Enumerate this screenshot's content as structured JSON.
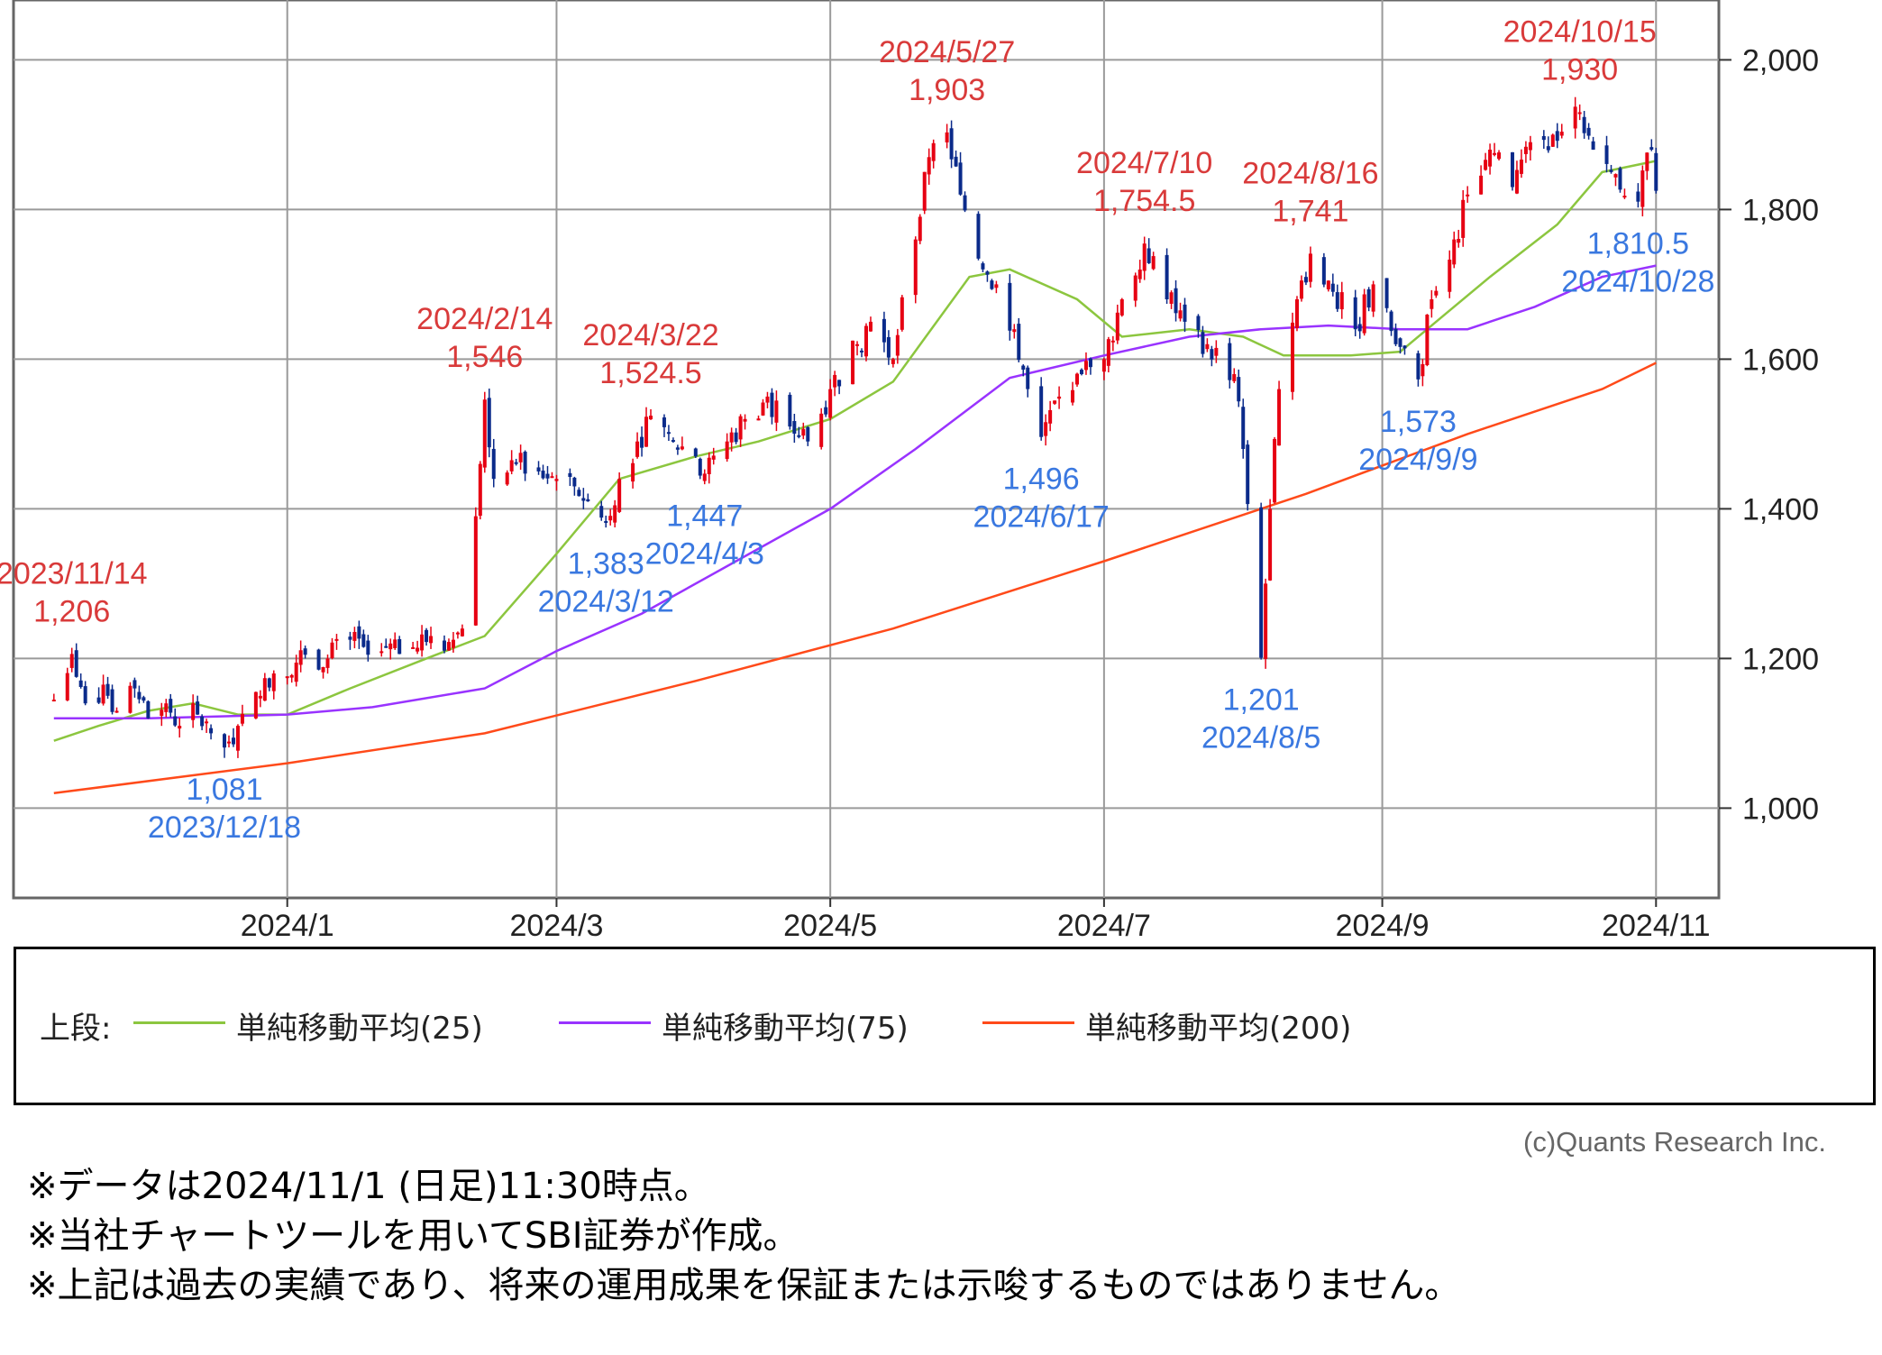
{
  "chart_data": {
    "type": "candlestick",
    "x_ticks": [
      "2024/1",
      "2024/3",
      "2024/5",
      "2024/7",
      "2024/9",
      "2024/11"
    ],
    "y_ticks": [
      "1,000",
      "1,200",
      "1,400",
      "1,600",
      "1,800",
      "2,000"
    ],
    "ylim": [
      880,
      2080
    ],
    "grid": true,
    "colors": {
      "up": "#e60012",
      "down": "#0a2a8a",
      "ma25": "#8cc63f",
      "ma75": "#9933ff",
      "ma200": "#ff4a1a",
      "high_label": "#d93a3a",
      "low_label": "#3a78e0"
    },
    "ohlc_path": [
      [
        "2023-11-10",
        1145
      ],
      [
        "2023-11-14",
        1206
      ],
      [
        "2023-11-17",
        1140
      ],
      [
        "2023-11-21",
        1165
      ],
      [
        "2023-11-24",
        1130
      ],
      [
        "2023-11-28",
        1160
      ],
      [
        "2023-12-01",
        1120
      ],
      [
        "2023-12-05",
        1140
      ],
      [
        "2023-12-08",
        1110
      ],
      [
        "2023-12-12",
        1125
      ],
      [
        "2023-12-15",
        1100
      ],
      [
        "2023-12-18",
        1081
      ],
      [
        "2023-12-21",
        1110
      ],
      [
        "2023-12-26",
        1150
      ],
      [
        "2023-12-29",
        1180
      ],
      [
        "2024-01-05",
        1205
      ],
      [
        "2024-01-10",
        1200
      ],
      [
        "2024-01-15",
        1225
      ],
      [
        "2024-01-19",
        1205
      ],
      [
        "2024-01-24",
        1220
      ],
      [
        "2024-01-29",
        1215
      ],
      [
        "2024-02-02",
        1230
      ],
      [
        "2024-02-07",
        1225
      ],
      [
        "2024-02-09",
        1240
      ],
      [
        "2024-02-13",
        1460
      ],
      [
        "2024-02-14",
        1546
      ],
      [
        "2024-02-16",
        1440
      ],
      [
        "2024-02-21",
        1460
      ],
      [
        "2024-02-26",
        1450
      ],
      [
        "2024-03-01",
        1440
      ],
      [
        "2024-03-05",
        1430
      ],
      [
        "2024-03-08",
        1410
      ],
      [
        "2024-03-12",
        1383
      ],
      [
        "2024-03-15",
        1440
      ],
      [
        "2024-03-19",
        1490
      ],
      [
        "2024-03-22",
        1524.5
      ],
      [
        "2024-03-27",
        1490
      ],
      [
        "2024-04-01",
        1470
      ],
      [
        "2024-04-03",
        1447
      ],
      [
        "2024-04-08",
        1490
      ],
      [
        "2024-04-12",
        1520
      ],
      [
        "2024-04-17",
        1550
      ],
      [
        "2024-04-22",
        1510
      ],
      [
        "2024-04-26",
        1490
      ],
      [
        "2024-05-01",
        1560
      ],
      [
        "2024-05-07",
        1620
      ],
      [
        "2024-05-10",
        1650
      ],
      [
        "2024-05-15",
        1600
      ],
      [
        "2024-05-20",
        1760
      ],
      [
        "2024-05-23",
        1870
      ],
      [
        "2024-05-27",
        1903
      ],
      [
        "2024-05-30",
        1820
      ],
      [
        "2024-06-04",
        1720
      ],
      [
        "2024-06-07",
        1700
      ],
      [
        "2024-06-11",
        1640
      ],
      [
        "2024-06-14",
        1560
      ],
      [
        "2024-06-17",
        1496
      ],
      [
        "2024-06-21",
        1550
      ],
      [
        "2024-06-26",
        1580
      ],
      [
        "2024-07-01",
        1600
      ],
      [
        "2024-07-05",
        1680
      ],
      [
        "2024-07-10",
        1754.5
      ],
      [
        "2024-07-15",
        1680
      ],
      [
        "2024-07-19",
        1650
      ],
      [
        "2024-07-24",
        1620
      ],
      [
        "2024-07-30",
        1580
      ],
      [
        "2024-08-01",
        1480
      ],
      [
        "2024-08-05",
        1201
      ],
      [
        "2024-08-07",
        1400
      ],
      [
        "2024-08-09",
        1560
      ],
      [
        "2024-08-13",
        1680
      ],
      [
        "2024-08-16",
        1741
      ],
      [
        "2024-08-21",
        1690
      ],
      [
        "2024-08-26",
        1640
      ],
      [
        "2024-08-30",
        1700
      ],
      [
        "2024-09-04",
        1620
      ],
      [
        "2024-09-09",
        1573
      ],
      [
        "2024-09-12",
        1680
      ],
      [
        "2024-09-17",
        1760
      ],
      [
        "2024-09-20",
        1820
      ],
      [
        "2024-09-25",
        1880
      ],
      [
        "2024-09-30",
        1830
      ],
      [
        "2024-10-04",
        1890
      ],
      [
        "2024-10-09",
        1900
      ],
      [
        "2024-10-15",
        1930
      ],
      [
        "2024-10-18",
        1880
      ],
      [
        "2024-10-22",
        1850
      ],
      [
        "2024-10-28",
        1810.5
      ],
      [
        "2024-10-31",
        1880
      ],
      [
        "2024-11-01",
        1825
      ]
    ],
    "series": [
      {
        "name": "単純移動平均(25)",
        "points": [
          [
            "2023-11-10",
            1090
          ],
          [
            "2023-11-20",
            1110
          ],
          [
            "2023-12-01",
            1130
          ],
          [
            "2023-12-11",
            1140
          ],
          [
            "2023-12-21",
            1125
          ],
          [
            "2024-01-01",
            1125
          ],
          [
            "2024-01-15",
            1160
          ],
          [
            "2024-02-01",
            1200
          ],
          [
            "2024-02-14",
            1230
          ],
          [
            "2024-03-01",
            1340
          ],
          [
            "2024-03-15",
            1440
          ],
          [
            "2024-04-01",
            1470
          ],
          [
            "2024-04-15",
            1490
          ],
          [
            "2024-05-01",
            1520
          ],
          [
            "2024-05-15",
            1570
          ],
          [
            "2024-06-01",
            1710
          ],
          [
            "2024-06-10",
            1720
          ],
          [
            "2024-06-25",
            1680
          ],
          [
            "2024-07-05",
            1630
          ],
          [
            "2024-07-20",
            1640
          ],
          [
            "2024-08-01",
            1630
          ],
          [
            "2024-08-10",
            1605
          ],
          [
            "2024-08-25",
            1605
          ],
          [
            "2024-09-05",
            1610
          ],
          [
            "2024-09-15",
            1660
          ],
          [
            "2024-09-25",
            1710
          ],
          [
            "2024-10-10",
            1780
          ],
          [
            "2024-10-20",
            1850
          ],
          [
            "2024-11-01",
            1865
          ]
        ]
      },
      {
        "name": "単純移動平均(75)",
        "points": [
          [
            "2023-11-10",
            1120
          ],
          [
            "2023-12-01",
            1120
          ],
          [
            "2024-01-01",
            1125
          ],
          [
            "2024-01-20",
            1135
          ],
          [
            "2024-02-14",
            1160
          ],
          [
            "2024-03-01",
            1210
          ],
          [
            "2024-03-20",
            1260
          ],
          [
            "2024-04-10",
            1330
          ],
          [
            "2024-05-01",
            1400
          ],
          [
            "2024-05-20",
            1480
          ],
          [
            "2024-06-10",
            1575
          ],
          [
            "2024-07-01",
            1605
          ],
          [
            "2024-07-20",
            1630
          ],
          [
            "2024-08-05",
            1640
          ],
          [
            "2024-08-20",
            1645
          ],
          [
            "2024-09-05",
            1640
          ],
          [
            "2024-09-20",
            1640
          ],
          [
            "2024-10-05",
            1670
          ],
          [
            "2024-10-20",
            1710
          ],
          [
            "2024-11-01",
            1725
          ]
        ]
      },
      {
        "name": "単純移動平均(200)",
        "points": [
          [
            "2023-11-10",
            1020
          ],
          [
            "2024-01-01",
            1060
          ],
          [
            "2024-02-14",
            1100
          ],
          [
            "2024-04-01",
            1170
          ],
          [
            "2024-05-15",
            1240
          ],
          [
            "2024-07-01",
            1330
          ],
          [
            "2024-08-15",
            1420
          ],
          [
            "2024-09-20",
            1500
          ],
          [
            "2024-10-20",
            1560
          ],
          [
            "2024-11-01",
            1595
          ]
        ]
      }
    ],
    "annotations": [
      {
        "kind": "high",
        "date": "2023/11/14",
        "value": "1,206",
        "x": "2023-11-14",
        "y": 1206
      },
      {
        "kind": "low",
        "date": "2023/12/18",
        "value": "1,081",
        "x": "2023-12-18",
        "y": 1081
      },
      {
        "kind": "high",
        "date": "2024/2/14",
        "value": "1,546",
        "x": "2024-02-14",
        "y": 1546
      },
      {
        "kind": "low",
        "date": "2024/3/12",
        "value": "1,383",
        "x": "2024-03-12",
        "y": 1383
      },
      {
        "kind": "high",
        "date": "2024/3/22",
        "value": "1,524.5",
        "x": "2024-03-22",
        "y": 1524.5
      },
      {
        "kind": "low",
        "date": "2024/4/3",
        "value": "1,447",
        "x": "2024-04-03",
        "y": 1447
      },
      {
        "kind": "high",
        "date": "2024/5/27",
        "value": "1,903",
        "x": "2024-05-27",
        "y": 1903
      },
      {
        "kind": "low",
        "date": "2024/6/17",
        "value": "1,496",
        "x": "2024-06-17",
        "y": 1496
      },
      {
        "kind": "high",
        "date": "2024/7/10",
        "value": "1,754.5",
        "x": "2024-07-10",
        "y": 1754.5
      },
      {
        "kind": "low",
        "date": "2024/8/5",
        "value": "1,201",
        "x": "2024-08-05",
        "y": 1201
      },
      {
        "kind": "high",
        "date": "2024/8/16",
        "value": "1,741",
        "x": "2024-08-16",
        "y": 1741
      },
      {
        "kind": "low",
        "date": "2024/9/9",
        "value": "1,573",
        "x": "2024-09-09",
        "y": 1573
      },
      {
        "kind": "high",
        "date": "2024/10/15",
        "value": "1,930",
        "x": "2024-10-15",
        "y": 1930
      },
      {
        "kind": "low",
        "date": "2024/10/28",
        "value": "1,810.5",
        "x": "2024-10-28",
        "y": 1810.5
      }
    ]
  },
  "legend": {
    "prefix": "上段:",
    "items": [
      {
        "label": "単純移動平均(25)",
        "color": "#8cc63f"
      },
      {
        "label": "単純移動平均(75)",
        "color": "#9933ff"
      },
      {
        "label": "単純移動平均(200)",
        "color": "#ff4a1a"
      }
    ]
  },
  "copyright": "(c)Quants Research Inc.",
  "notes": [
    "※データは2024/11/1 (日足)11:30時点。",
    "※当社チャートツールを用いてSBI証券が作成。",
    "※上記は過去の実績であり、将来の運用成果を保証または示唆するものではありません。"
  ]
}
